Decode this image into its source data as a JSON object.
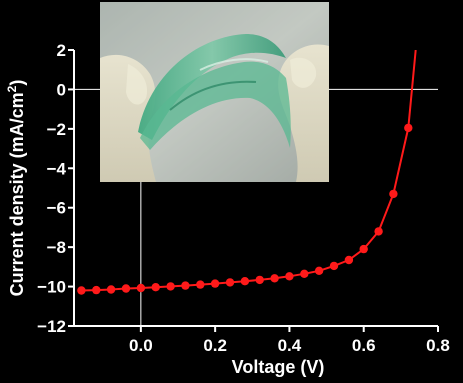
{
  "chart_data": {
    "type": "line",
    "title": "",
    "xlabel": "Voltage (V)",
    "ylabel_main": "Current density (mA/cm",
    "ylabel_sup": "2",
    "ylabel_tail": ")",
    "xlim": [
      -0.18,
      0.8
    ],
    "ylim": [
      -12,
      2
    ],
    "x_ticks": [
      0.0,
      0.2,
      0.4,
      0.6,
      0.8
    ],
    "x_tick_labels": [
      "0.0",
      "0.2",
      "0.4",
      "0.6",
      "0.8"
    ],
    "y_ticks": [
      -12,
      -10,
      -8,
      -6,
      -4,
      -2,
      0,
      2
    ],
    "y_tick_labels": [
      "−12",
      "−10",
      "−8",
      "−6",
      "−4",
      "−2",
      "0",
      "2"
    ],
    "grid": false,
    "reference_lines": {
      "x": 0,
      "y": 0
    },
    "series": [
      {
        "color": "#ff1a1a",
        "points": [
          [
            -0.16,
            -10.2
          ],
          [
            -0.12,
            -10.18
          ],
          [
            -0.08,
            -10.15
          ],
          [
            -0.04,
            -10.1
          ],
          [
            0.0,
            -10.07
          ],
          [
            0.04,
            -10.03
          ],
          [
            0.08,
            -9.99
          ],
          [
            0.12,
            -9.95
          ],
          [
            0.16,
            -9.9
          ],
          [
            0.2,
            -9.85
          ],
          [
            0.24,
            -9.79
          ],
          [
            0.28,
            -9.73
          ],
          [
            0.32,
            -9.66
          ],
          [
            0.36,
            -9.58
          ],
          [
            0.4,
            -9.48
          ],
          [
            0.44,
            -9.35
          ],
          [
            0.48,
            -9.2
          ],
          [
            0.52,
            -8.95
          ],
          [
            0.56,
            -8.65
          ],
          [
            0.6,
            -8.1
          ],
          [
            0.64,
            -7.2
          ],
          [
            0.68,
            -5.3
          ],
          [
            0.72,
            -1.95
          ]
        ],
        "curve_extension": [
          0.74,
          2.0
        ]
      }
    ],
    "inset": {
      "kind": "photo",
      "subject": "flexible-solar-cell-bent-between-gloved-fingers"
    }
  }
}
